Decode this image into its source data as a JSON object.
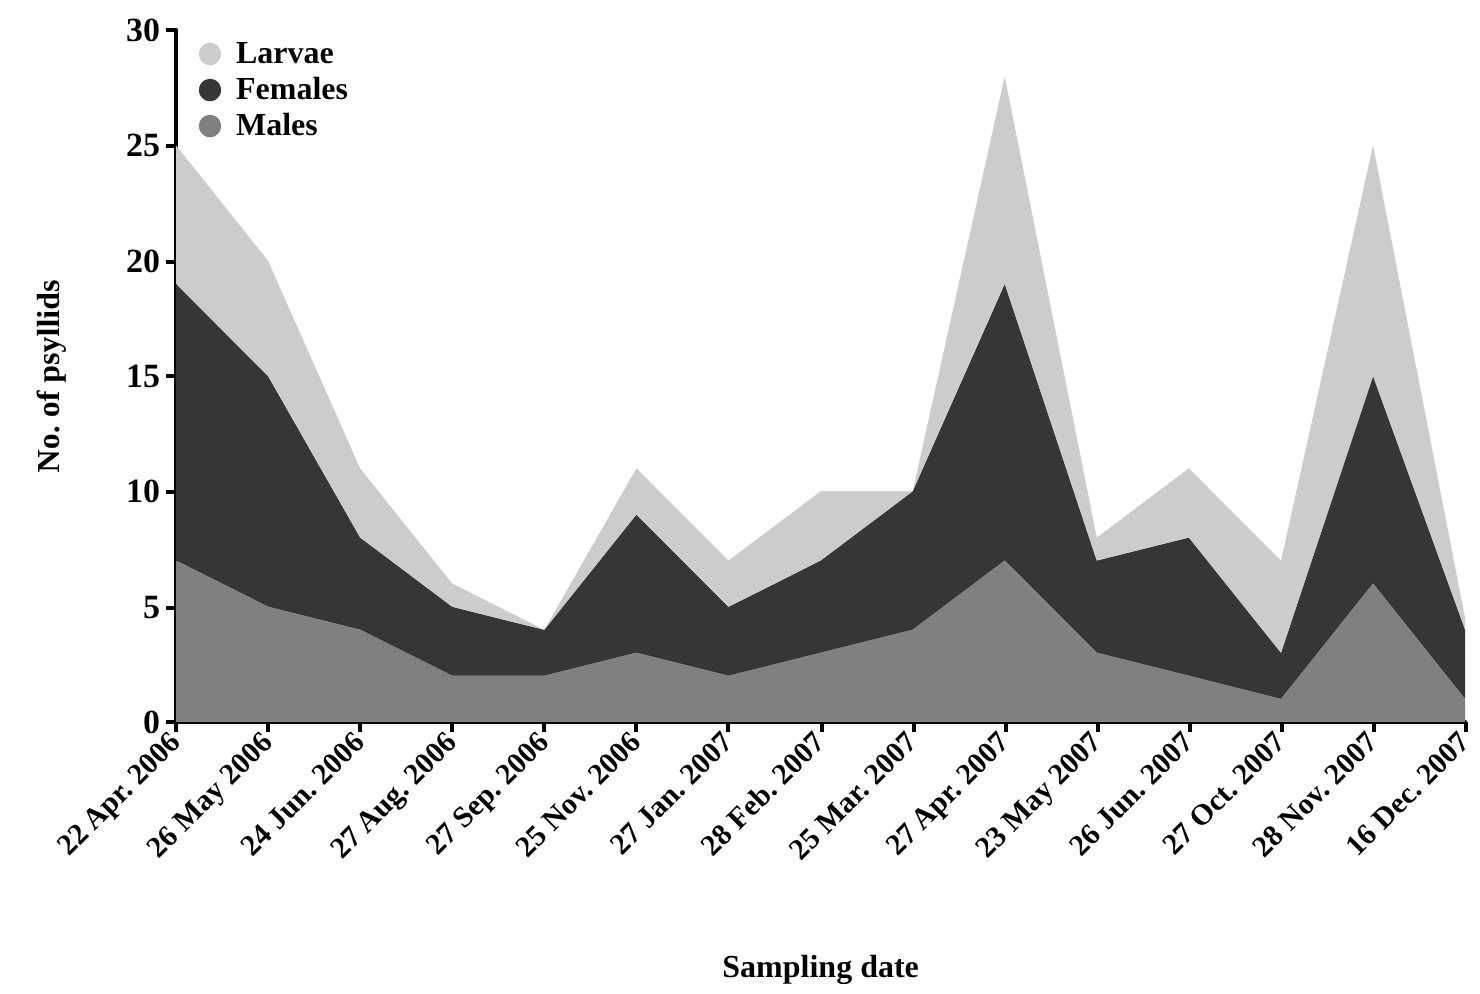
{
  "chart_data": {
    "type": "area",
    "xlabel": "Sampling date",
    "ylabel": "No. of psyllids",
    "categories": [
      "22 Apr. 2006",
      "26 May 2006",
      "24 Jun. 2006",
      "27 Aug. 2006",
      "27 Sep. 2006",
      "25 Nov. 2006",
      "27 Jan. 2007",
      "28 Feb. 2007",
      "25 Mar. 2007",
      "27 Apr. 2007",
      "23 May 2007",
      "26 Jun. 2007",
      "27 Oct. 2007",
      "28 Nov. 2007",
      "16 Dec. 2007"
    ],
    "series": [
      {
        "name": "Males",
        "color": "#808080",
        "values": [
          7,
          5,
          4,
          2,
          2,
          3,
          2,
          3,
          4,
          7,
          3,
          2,
          1,
          6,
          1
        ]
      },
      {
        "name": "Females",
        "color": "#363636",
        "values": [
          12,
          10,
          4,
          3,
          2,
          6,
          3,
          4,
          6,
          12,
          4,
          6,
          2,
          9,
          3
        ]
      },
      {
        "name": "Larvae",
        "color": "#cccccc",
        "values": [
          6,
          5,
          3,
          1,
          0,
          2,
          2,
          3,
          0,
          9,
          1,
          3,
          4,
          10,
          0.5
        ]
      }
    ],
    "stacked": true,
    "ylim": [
      0,
      30
    ],
    "yticks": [
      0,
      5,
      10,
      15,
      20,
      25,
      30
    ],
    "legend": "top left"
  }
}
